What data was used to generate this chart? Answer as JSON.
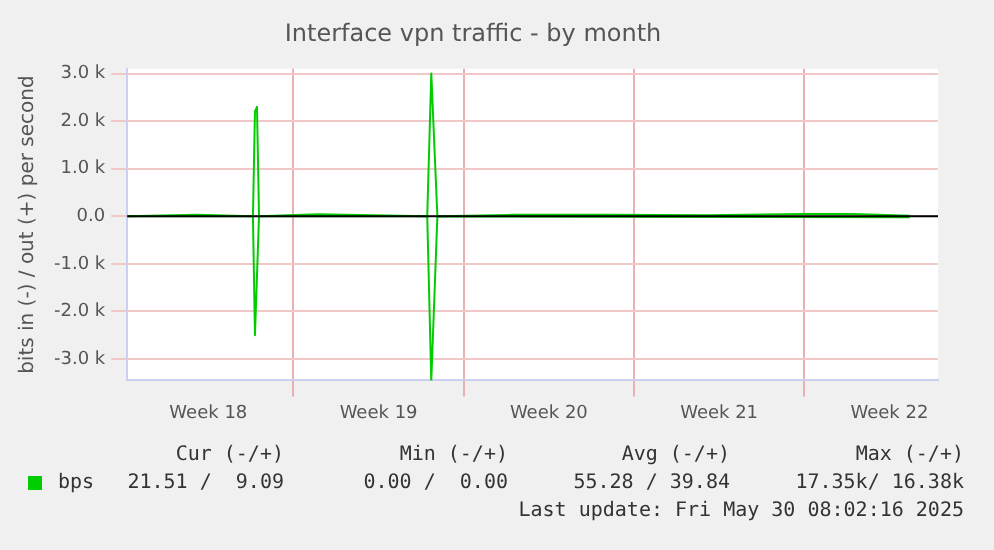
{
  "chart_data": {
    "type": "line",
    "title": "Interface vpn traffic - by month",
    "ylabel": "bits in (-) / out (+) per second",
    "xlim": [
      "2025-04-28T04:00",
      "2025-05-31T12:00"
    ],
    "xticks": [
      {
        "value": "2025-05-01T12:00",
        "label": "Week 18"
      },
      {
        "value": "2025-05-05",
        "label": null
      },
      {
        "value": "2025-05-08T12:00",
        "label": "Week 19"
      },
      {
        "value": "2025-05-12",
        "label": null
      },
      {
        "value": "2025-05-15T12:00",
        "label": "Week 20"
      },
      {
        "value": "2025-05-19",
        "label": null
      },
      {
        "value": "2025-05-22T12:00",
        "label": "Week 21"
      },
      {
        "value": "2025-05-26",
        "label": null
      },
      {
        "value": "2025-05-29T12:00",
        "label": "Week 22"
      }
    ],
    "ylim": [
      -3450,
      3100
    ],
    "yticks": [
      {
        "value": -3000,
        "label": "-3.0 k"
      },
      {
        "value": -2000,
        "label": "-2.0 k"
      },
      {
        "value": -1000,
        "label": "-1.0 k"
      },
      {
        "value": 0,
        "label": "0.0"
      },
      {
        "value": 1000,
        "label": "1.0 k"
      },
      {
        "value": 2000,
        "label": "2.0 k"
      },
      {
        "value": 3000,
        "label": "3.0 k"
      }
    ],
    "grid": true,
    "legend": "bottom left",
    "marker": "none",
    "line_style": "solid",
    "ref_lines": [
      {
        "axis": "y",
        "value": 0,
        "color": "#000000"
      }
    ],
    "series": [
      {
        "name": "bps",
        "color": "#00cc00",
        "x": [
          "2025-04-28T04:00",
          "2025-05-01",
          "2025-05-03T08:00",
          "2025-05-03T10:00",
          "2025-05-03T12:00",
          "2025-05-03T14:00",
          "2025-05-06",
          "2025-05-10T12:00",
          "2025-05-10T16:00",
          "2025-05-10T22:00",
          "2025-05-14",
          "2025-05-18",
          "2025-05-22",
          "2025-05-26",
          "2025-05-28",
          "2025-05-30T08:00"
        ],
        "values": [
          0,
          30,
          0,
          2200,
          2300,
          0,
          40,
          0,
          3000,
          0,
          30,
          30,
          20,
          50,
          50,
          10
        ]
      },
      {
        "color": "#00cc00",
        "x": [
          "2025-04-28T04:00",
          "2025-05-03T08:00",
          "2025-05-03T10:00",
          "2025-05-03T14:00",
          "2025-05-10T12:00",
          "2025-05-10T16:00",
          "2025-05-10T22:00",
          "2025-05-30T08:00"
        ],
        "values": [
          0,
          0,
          -2500,
          0,
          0,
          -3450,
          0,
          -20
        ]
      }
    ],
    "annotations": [
      "Cur (-/+)",
      "Min (-/+)",
      "Avg (-/+)",
      "Max (-/+)",
      "21.51 /  9.09",
      "0.00 /  0.00",
      "55.28 / 39.84",
      "17.35k/ 16.38k",
      "Last update: Fri May 30 08:02:16 2025"
    ]
  }
}
